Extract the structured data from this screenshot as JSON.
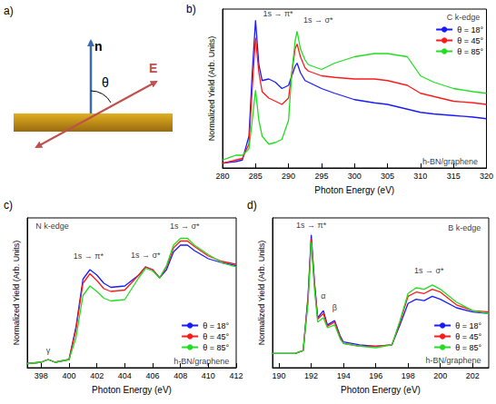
{
  "diagram": {
    "panel_label": "a)",
    "normal_label": "n",
    "angle_label": "θ",
    "field_label": "E"
  },
  "chart_data": [
    {
      "type": "line",
      "panel_label": "b)",
      "x_label": "Photon Energy (eV)",
      "y_label": "Normalized Yield (Arb. Units)",
      "xlim": [
        280,
        320
      ],
      "xticks": [
        280,
        285,
        290,
        295,
        300,
        305,
        310,
        315,
        320
      ],
      "ylim": [
        0,
        1
      ],
      "tick_labels": "x",
      "grid": false,
      "legend": "upper right",
      "x": [
        280,
        282,
        283,
        284,
        284.5,
        285,
        285.5,
        286,
        287,
        288,
        289,
        290,
        290.5,
        291,
        291.3,
        291.8,
        292.5,
        293,
        295,
        297,
        300,
        303,
        305,
        308,
        310,
        312,
        315,
        318,
        320
      ],
      "series": [
        {
          "name": "θ = 18°",
          "color": "#1a1aff",
          "values": [
            0.03,
            0.04,
            0.05,
            0.2,
            0.6,
            0.93,
            0.65,
            0.55,
            0.56,
            0.54,
            0.5,
            0.52,
            0.58,
            0.64,
            0.66,
            0.6,
            0.55,
            0.54,
            0.5,
            0.47,
            0.43,
            0.41,
            0.4,
            0.37,
            0.35,
            0.34,
            0.33,
            0.32,
            0.31
          ]
        },
        {
          "name": "θ = 45°",
          "color": "#ff1a1a",
          "values": [
            0.03,
            0.05,
            0.06,
            0.15,
            0.5,
            0.82,
            0.6,
            0.48,
            0.44,
            0.42,
            0.4,
            0.44,
            0.6,
            0.75,
            0.78,
            0.7,
            0.63,
            0.61,
            0.58,
            0.57,
            0.56,
            0.56,
            0.55,
            0.52,
            0.47,
            0.45,
            0.42,
            0.41,
            0.4
          ]
        },
        {
          "name": "θ = 85°",
          "color": "#22dd22",
          "values": [
            0.05,
            0.08,
            0.08,
            0.12,
            0.3,
            0.49,
            0.3,
            0.2,
            0.15,
            0.16,
            0.18,
            0.3,
            0.6,
            0.8,
            0.86,
            0.75,
            0.68,
            0.65,
            0.62,
            0.66,
            0.7,
            0.72,
            0.72,
            0.7,
            0.58,
            0.54,
            0.5,
            0.48,
            0.47
          ]
        }
      ],
      "annotations": [
        {
          "text": "C k-edge",
          "x": 316.5,
          "y": 0.95
        },
        {
          "text": "1s → π*",
          "x": 288.4,
          "y": 0.97
        },
        {
          "text": "1s → σ*",
          "x": 294.5,
          "y": 0.93
        },
        {
          "text": "h-BN/graphene",
          "x": 314.5,
          "y": 0.04
        }
      ]
    },
    {
      "type": "line",
      "panel_label": "c)",
      "x_label": "Photon Energy (eV)",
      "y_label": "Normalized Yield (Arb. Units)",
      "xlim": [
        397,
        412
      ],
      "xticks": [
        398,
        400,
        402,
        404,
        406,
        408,
        410,
        412
      ],
      "ylim": [
        0,
        1.1
      ],
      "tick_labels": "x",
      "grid": false,
      "legend": "lower right",
      "x": [
        397,
        398,
        398.5,
        399,
        400,
        400.5,
        401,
        401.5,
        402,
        402.5,
        403,
        404,
        405,
        405.5,
        406,
        406.5,
        407,
        407.5,
        408,
        408.5,
        409,
        410,
        411,
        412
      ],
      "series": [
        {
          "name": "θ = 18°",
          "color": "#1a1aff",
          "values": [
            0.03,
            0.04,
            0.06,
            0.04,
            0.06,
            0.3,
            0.65,
            0.72,
            0.68,
            0.62,
            0.59,
            0.6,
            0.68,
            0.74,
            0.72,
            0.66,
            0.72,
            0.85,
            0.9,
            0.9,
            0.86,
            0.8,
            0.77,
            0.75
          ]
        },
        {
          "name": "θ = 45°",
          "color": "#ff1a1a",
          "values": [
            0.03,
            0.04,
            0.06,
            0.04,
            0.06,
            0.28,
            0.62,
            0.69,
            0.64,
            0.58,
            0.56,
            0.57,
            0.68,
            0.74,
            0.72,
            0.66,
            0.74,
            0.88,
            0.93,
            0.93,
            0.89,
            0.82,
            0.78,
            0.76
          ]
        },
        {
          "name": "θ = 85°",
          "color": "#22dd22",
          "values": [
            0.03,
            0.04,
            0.06,
            0.04,
            0.06,
            0.22,
            0.53,
            0.6,
            0.56,
            0.51,
            0.49,
            0.5,
            0.66,
            0.73,
            0.71,
            0.66,
            0.75,
            0.9,
            0.95,
            0.95,
            0.9,
            0.83,
            0.77,
            0.74
          ]
        }
      ],
      "annotations": [
        {
          "text": "N k-edge",
          "x": 398.8,
          "y": 1.04
        },
        {
          "text": "γ",
          "x": 398.5,
          "y": 0.13
        },
        {
          "text": "1s → π*",
          "x": 401.4,
          "y": 0.82
        },
        {
          "text": "1s → σ*",
          "x": 405.5,
          "y": 0.83
        },
        {
          "text": "1s → σ*",
          "x": 408.3,
          "y": 1.04
        },
        {
          "text": "h-BN/graphene",
          "x": 409.5,
          "y": 0.05
        }
      ]
    },
    {
      "type": "line",
      "panel_label": "d)",
      "x_label": "Photon Energy (eV)",
      "y_label": "Normalized Yield (Arb. Units)",
      "xlim": [
        189.6,
        203
      ],
      "xticks": [
        190,
        192,
        194,
        196,
        198,
        200,
        202
      ],
      "ylim": [
        0,
        1.05
      ],
      "tick_labels": "x",
      "grid": false,
      "legend": "lower right",
      "x": [
        189.6,
        190,
        191,
        191.5,
        191.8,
        192,
        192.2,
        192.4,
        192.75,
        193,
        193.45,
        193.8,
        194,
        195,
        196,
        197,
        197.5,
        198,
        198.5,
        199,
        199.5,
        200,
        201,
        202,
        203
      ],
      "series": [
        {
          "name": "θ = 18°",
          "color": "#1a1aff",
          "values": [
            0.1,
            0.1,
            0.1,
            0.12,
            0.5,
            0.93,
            0.6,
            0.35,
            0.4,
            0.3,
            0.33,
            0.22,
            0.18,
            0.16,
            0.15,
            0.16,
            0.3,
            0.45,
            0.48,
            0.47,
            0.5,
            0.48,
            0.42,
            0.39,
            0.38
          ]
        },
        {
          "name": "θ = 45°",
          "color": "#ff1a1a",
          "values": [
            0.1,
            0.1,
            0.1,
            0.12,
            0.48,
            0.9,
            0.58,
            0.34,
            0.38,
            0.29,
            0.32,
            0.21,
            0.17,
            0.15,
            0.15,
            0.16,
            0.32,
            0.5,
            0.53,
            0.52,
            0.55,
            0.53,
            0.44,
            0.4,
            0.39
          ]
        },
        {
          "name": "θ = 85°",
          "color": "#22dd22",
          "values": [
            0.1,
            0.1,
            0.1,
            0.12,
            0.45,
            0.88,
            0.55,
            0.32,
            0.35,
            0.28,
            0.3,
            0.2,
            0.17,
            0.15,
            0.14,
            0.16,
            0.33,
            0.52,
            0.56,
            0.55,
            0.58,
            0.55,
            0.46,
            0.4,
            0.38
          ]
        }
      ],
      "annotations": [
        {
          "text": "B k-edge",
          "x": 201.5,
          "y": 0.98
        },
        {
          "text": "1s → π*",
          "x": 192.0,
          "y": 1.0
        },
        {
          "text": "α",
          "x": 192.75,
          "y": 0.5
        },
        {
          "text": "β",
          "x": 193.45,
          "y": 0.42
        },
        {
          "text": "1s → σ*",
          "x": 199.3,
          "y": 0.68
        },
        {
          "text": "h-BN/graphene",
          "x": 200.8,
          "y": 0.05
        }
      ]
    }
  ]
}
